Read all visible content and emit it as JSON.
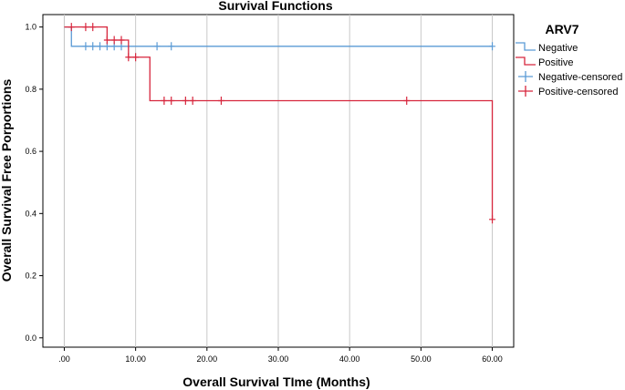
{
  "chart_data": {
    "type": "line",
    "step": true,
    "title": "Survival Functions",
    "xlabel": "Overall Survival TIme (Months)",
    "ylabel": "Overall Survival Free Porportions",
    "xlim": [
      -3,
      63
    ],
    "ylim": [
      -0.03,
      1.04
    ],
    "x_ticks": [
      0,
      10,
      20,
      30,
      40,
      50,
      60
    ],
    "x_tick_labels": [
      ".00",
      "10.00",
      "20.00",
      "30.00",
      "40.00",
      "50.00",
      "60.00"
    ],
    "y_ticks": [
      0,
      0.2,
      0.4,
      0.6,
      0.8,
      1.0
    ],
    "y_tick_labels": [
      "0.0",
      "0.2",
      "0.4",
      "0.6",
      "0.8",
      "1.0"
    ],
    "grid": "vertical",
    "legend": {
      "title": "ARV7",
      "position": "right",
      "entries": [
        "Negative",
        "Positive",
        "Negative-censored",
        "Positive-censored"
      ]
    },
    "series": [
      {
        "name": "Negative",
        "color": "#5b9bd5",
        "steps": [
          [
            0,
            1.0
          ],
          [
            1,
            0.938
          ],
          [
            60,
            0.938
          ]
        ],
        "censored": [
          [
            3,
            0.938
          ],
          [
            4,
            0.938
          ],
          [
            5,
            0.938
          ],
          [
            6,
            0.938
          ],
          [
            7,
            0.938
          ],
          [
            8,
            0.938
          ],
          [
            13,
            0.938
          ],
          [
            15,
            0.938
          ],
          [
            60,
            0.938
          ]
        ]
      },
      {
        "name": "Positive",
        "color": "#d7263d",
        "steps": [
          [
            0,
            1.0
          ],
          [
            6,
            0.958
          ],
          [
            9,
            0.903
          ],
          [
            12,
            0.763
          ],
          [
            60,
            0.381
          ]
        ],
        "censored": [
          [
            1,
            1.0
          ],
          [
            3,
            1.0
          ],
          [
            4,
            1.0
          ],
          [
            6,
            0.958
          ],
          [
            7,
            0.958
          ],
          [
            8,
            0.958
          ],
          [
            9,
            0.903
          ],
          [
            10,
            0.903
          ],
          [
            14,
            0.763
          ],
          [
            15,
            0.763
          ],
          [
            17,
            0.763
          ],
          [
            18,
            0.763
          ],
          [
            22,
            0.763
          ],
          [
            48,
            0.763
          ],
          [
            60,
            0.381
          ]
        ]
      }
    ]
  }
}
